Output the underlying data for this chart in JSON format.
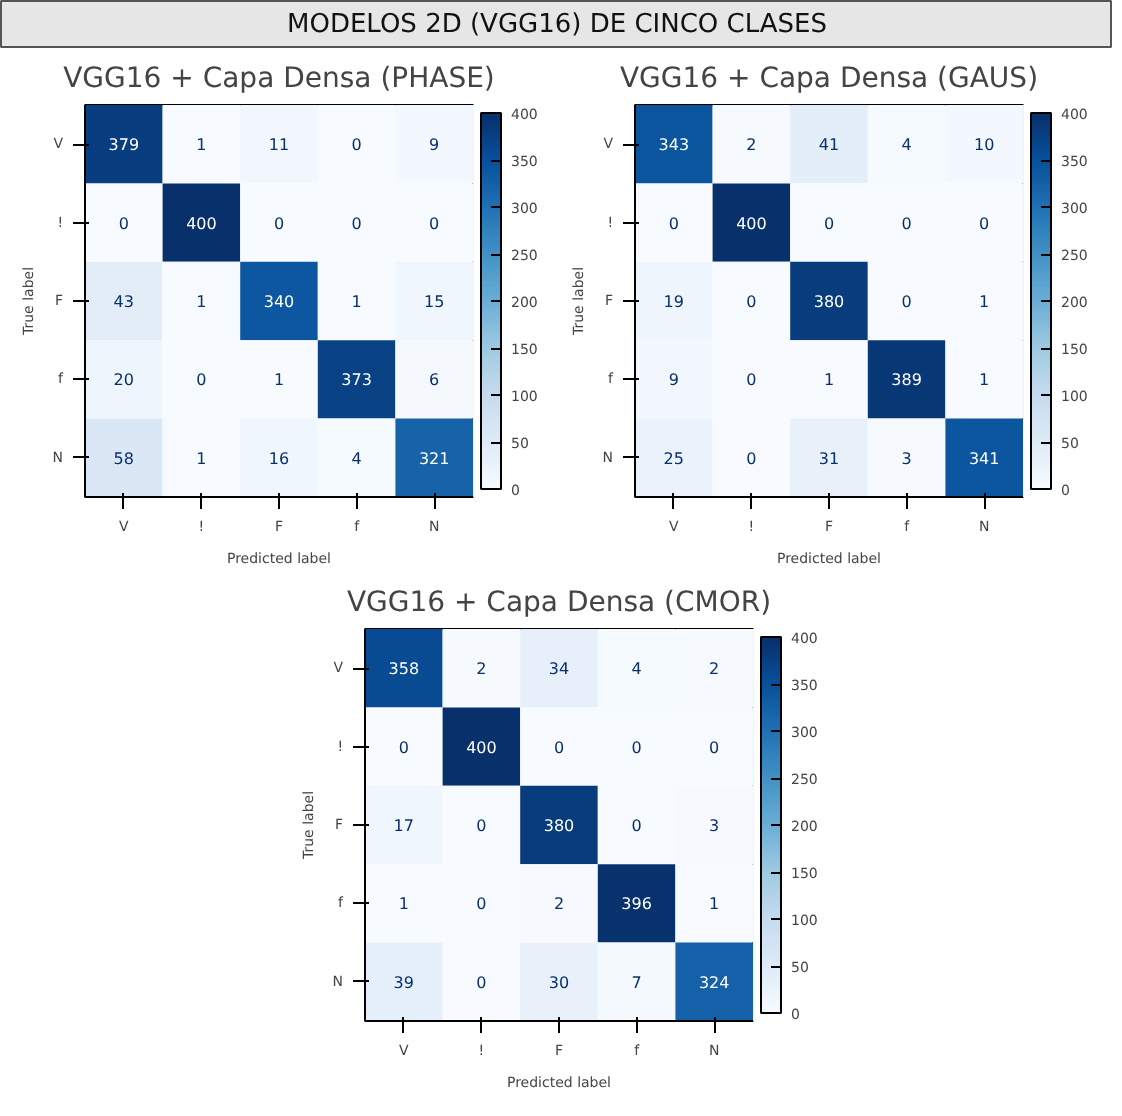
{
  "chart_data": [
    {
      "type": "other",
      "title": "MODELOS 2D (VGG16) DE CINCO CLASES"
    },
    {
      "type": "heatmap",
      "title": "VGG16 + Capa Densa (PHASE)",
      "xlabel": "Predicted label",
      "ylabel": "True label",
      "categories": [
        "V",
        "!",
        "F",
        "f",
        "N"
      ],
      "y_categories": [
        "V",
        "!",
        "F",
        "f",
        "N"
      ],
      "cells": [
        [
          379,
          1,
          11,
          0,
          9
        ],
        [
          0,
          400,
          0,
          0,
          0
        ],
        [
          43,
          1,
          340,
          1,
          15
        ],
        [
          20,
          0,
          1,
          373,
          6
        ],
        [
          58,
          1,
          16,
          4,
          321
        ]
      ],
      "clim": [
        0,
        400
      ],
      "cticks": [
        0,
        50,
        100,
        150,
        200,
        250,
        300,
        350,
        400
      ],
      "data_labels": true
    },
    {
      "type": "heatmap",
      "title": "VGG16 + Capa Densa (GAUS)",
      "xlabel": "Predicted label",
      "ylabel": "True label",
      "categories": [
        "V",
        "!",
        "F",
        "f",
        "N"
      ],
      "y_categories": [
        "V",
        "!",
        "F",
        "f",
        "N"
      ],
      "cells": [
        [
          343,
          2,
          41,
          4,
          10
        ],
        [
          0,
          400,
          0,
          0,
          0
        ],
        [
          19,
          0,
          380,
          0,
          1
        ],
        [
          9,
          0,
          1,
          389,
          1
        ],
        [
          25,
          0,
          31,
          3,
          341
        ]
      ],
      "clim": [
        0,
        400
      ],
      "cticks": [
        0,
        50,
        100,
        150,
        200,
        250,
        300,
        350,
        400
      ],
      "data_labels": true
    },
    {
      "type": "heatmap",
      "title": "VGG16 + Capa Densa (CMOR)",
      "xlabel": "Predicted label",
      "ylabel": "True label",
      "categories": [
        "V",
        "!",
        "F",
        "f",
        "N"
      ],
      "y_categories": [
        "V",
        "!",
        "F",
        "f",
        "N"
      ],
      "cells": [
        [
          358,
          2,
          34,
          4,
          2
        ],
        [
          0,
          400,
          0,
          0,
          0
        ],
        [
          17,
          0,
          380,
          0,
          3
        ],
        [
          1,
          0,
          2,
          396,
          1
        ],
        [
          39,
          0,
          30,
          7,
          324
        ]
      ],
      "clim": [
        0,
        400
      ],
      "cticks": [
        0,
        50,
        100,
        150,
        200,
        250,
        300,
        350,
        400
      ],
      "data_labels": true
    }
  ]
}
